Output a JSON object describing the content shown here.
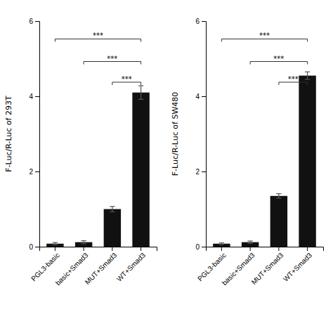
{
  "chart_data": [
    {
      "type": "bar",
      "categories": [
        "PGL3-basic",
        "basic+Smad3",
        "MUT+Smad3",
        "WT+Smad3"
      ],
      "values": [
        0.08,
        0.12,
        1.0,
        4.1
      ],
      "errors": [
        0.03,
        0.04,
        0.07,
        0.18
      ],
      "color": "#111111",
      "y_label": "F-Luc/R-Luc of 293T",
      "ylim": [
        0,
        6
      ],
      "yticks": [
        0,
        2,
        4,
        6
      ],
      "grid": false,
      "annotations": [
        {
          "text": "***",
          "from": "PGL3-basic",
          "to": "WT+Smad3",
          "y": 5.45
        },
        {
          "text": "***",
          "from": "basic+Smad3",
          "to": "WT+Smad3",
          "y": 4.85
        },
        {
          "text": "***",
          "from": "MUT+Smad3",
          "to": "WT+Smad3",
          "y": 4.3
        }
      ]
    },
    {
      "type": "bar",
      "categories": [
        "PGL3-basic",
        "basic+Smad3",
        "MUT+Smad3",
        "WT+Smad3"
      ],
      "values": [
        0.08,
        0.12,
        1.35,
        4.55
      ],
      "errors": [
        0.02,
        0.03,
        0.06,
        0.1
      ],
      "color": "#111111",
      "y_label": "F-Luc/R-Luc of SW480",
      "ylim": [
        0,
        6
      ],
      "yticks": [
        0,
        2,
        4,
        6
      ],
      "grid": false,
      "annotations": [
        {
          "text": "***",
          "from": "PGL3-basic",
          "to": "WT+Smad3",
          "y": 5.45
        },
        {
          "text": "***",
          "from": "basic+Smad3",
          "to": "WT+Smad3",
          "y": 4.85
        },
        {
          "text": "***",
          "from": "MUT+Smad3",
          "to": "WT+Smad3",
          "y": 4.3
        }
      ]
    }
  ]
}
